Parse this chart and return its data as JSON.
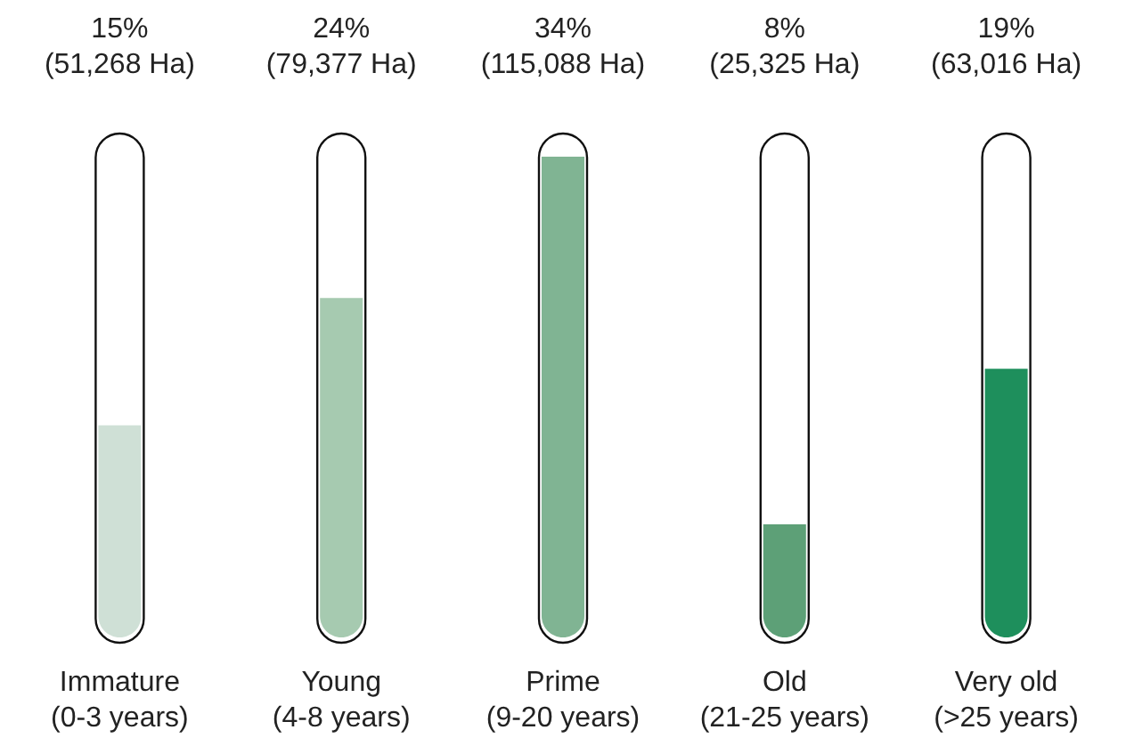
{
  "chart_data": {
    "type": "bar",
    "categories": [
      "Immature\n(0-3 years)",
      "Young\n(4-8 years)",
      "Prime\n(9-20 years)",
      "Old\n(21-25 years)",
      "Very old\n(>25 years)"
    ],
    "values": [
      15,
      24,
      34,
      8,
      19
    ],
    "colors": [
      "#cfe0d6",
      "#a6cab0",
      "#80b493",
      "#5da077",
      "#1e8f5c"
    ],
    "value_labels": [
      "15%\n(51,268 Ha)",
      "24%\n(79,377 Ha)",
      "34%\n(115,088 Ha)",
      "8%\n(25,325 Ha)",
      "19%\n(63,016 Ha)"
    ]
  }
}
